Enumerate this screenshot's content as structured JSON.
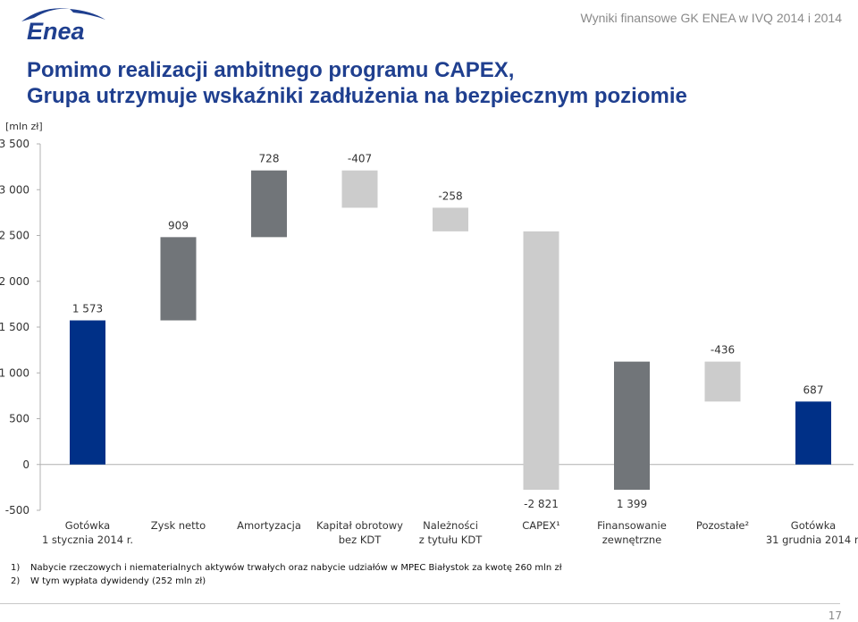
{
  "header": {
    "logo_text": "Enea",
    "caption": "Wyniki finansowe GK ENEA w IVQ 2014 i 2014"
  },
  "title": {
    "line1": "Pomimo realizacji ambitnego programu CAPEX,",
    "line2": "Grupa utrzymuje wskaźniki zadłużenia na bezpiecznym poziomie"
  },
  "unit_label": "[mln zł]",
  "colors": {
    "navy": "#003087",
    "dark_gray": "#717579",
    "light_gray": "#cccccc",
    "title": "#1f3f8f"
  },
  "chart_data": {
    "type": "bar",
    "subtype": "waterfall",
    "ylim": [
      -500,
      3500
    ],
    "y_ticks": [
      "-500",
      "0",
      "500",
      "1 000",
      "1 500",
      "2 000",
      "2 500",
      "3 000",
      "3 500"
    ],
    "grid": false,
    "categories": [
      [
        "Gotówka",
        "1 stycznia 2014 r."
      ],
      [
        "Zysk netto"
      ],
      [
        "Amortyzacja"
      ],
      [
        "Kapitał obrotowy",
        "bez KDT"
      ],
      [
        "Należności",
        "z tytułu KDT"
      ],
      [
        "CAPEX¹"
      ],
      [
        "Finansowanie",
        "zewnętrzne"
      ],
      [
        "Pozostałe²"
      ],
      [
        "Gotówka",
        "31 grudnia 2014 r."
      ]
    ],
    "values": [
      1573,
      909,
      728,
      -407,
      -258,
      -2821,
      1399,
      -436,
      687
    ],
    "value_labels": [
      "1 573",
      "909",
      "728",
      "-407",
      "-258",
      "-2 821",
      "1 399",
      "-436",
      "687"
    ],
    "bar_kinds": [
      "total",
      "increase",
      "increase",
      "decrease",
      "decrease",
      "decrease",
      "increase",
      "decrease",
      "total"
    ]
  },
  "footnotes": [
    {
      "num": "1)",
      "text": "Nabycie rzeczowych i niematerialnych aktywów trwałych oraz nabycie udziałów w MPEC Białystok za kwotę 260 mln zł"
    },
    {
      "num": "2)",
      "text": "W tym wypłata dywidendy (252 mln zł)"
    }
  ],
  "page_number": "17"
}
